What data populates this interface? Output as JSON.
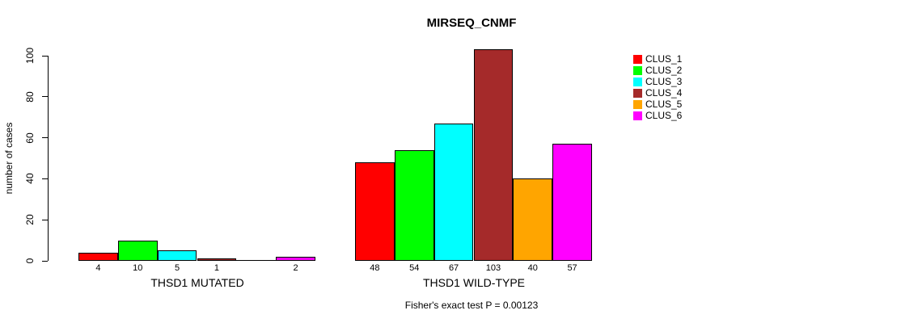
{
  "title": "MIRSEQ_CNMF",
  "chart_data": {
    "type": "bar",
    "title": "MIRSEQ_CNMF",
    "ylabel": "number of cases",
    "xlabel": "",
    "ylim": [
      0,
      100
    ],
    "yticks": [
      0,
      20,
      40,
      60,
      80,
      100
    ],
    "grid": false,
    "legend_position": "right-inside",
    "categories": [
      "THSD1 MUTATED",
      "THSD1 WILD-TYPE"
    ],
    "series": [
      {
        "name": "CLUS_1",
        "color": "#ff0000",
        "values": [
          4,
          48
        ]
      },
      {
        "name": "CLUS_2",
        "color": "#00ff00",
        "values": [
          10,
          54
        ]
      },
      {
        "name": "CLUS_3",
        "color": "#00ffff",
        "values": [
          5,
          67
        ]
      },
      {
        "name": "CLUS_4",
        "color": "#a52a2a",
        "values": [
          1,
          103
        ]
      },
      {
        "name": "CLUS_5",
        "color": "#ffa500",
        "values": [
          0,
          40
        ]
      },
      {
        "name": "CLUS_6",
        "color": "#ff00ff",
        "values": [
          2,
          57
        ]
      }
    ],
    "bar_value_labels_shown": true,
    "zero_value_label_hidden": true,
    "bar_border_color": "#000000",
    "annotation": "Fisher's exact test P = 0.00123"
  }
}
